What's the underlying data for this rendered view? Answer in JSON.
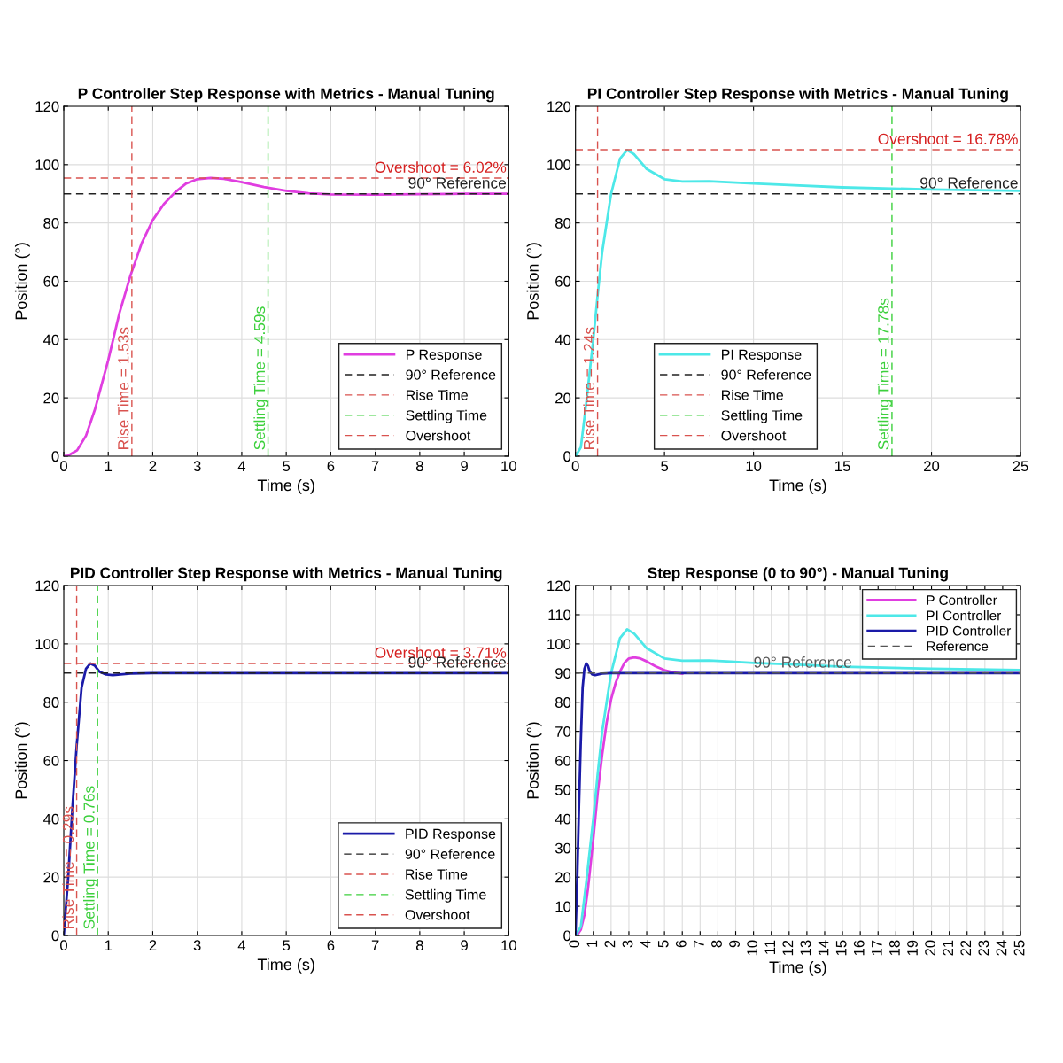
{
  "chart_data": [
    {
      "type": "line",
      "title": "P Controller Step Response with Metrics - Manual Tuning",
      "xlabel": "Time (s)",
      "ylabel": "Position (°)",
      "xlim": [
        0,
        10
      ],
      "ylim": [
        0,
        120
      ],
      "xticks": [
        0,
        1,
        2,
        3,
        4,
        5,
        6,
        7,
        8,
        9,
        10
      ],
      "yticks": [
        0,
        20,
        40,
        60,
        80,
        100,
        120
      ],
      "grid": true,
      "legend": "bottom right",
      "series": [
        {
          "name": "P Response",
          "color": "#e03ee0",
          "line_style": "solid",
          "x": [
            0,
            0.1,
            0.3,
            0.5,
            0.7,
            1,
            1.25,
            1.5,
            1.75,
            2,
            2.25,
            2.5,
            2.75,
            3,
            3.3,
            3.6,
            4,
            4.5,
            5,
            5.5,
            6,
            7,
            8,
            9,
            10
          ],
          "values": [
            0,
            0.2,
            2,
            7,
            16,
            33,
            49,
            62,
            73,
            81,
            86.5,
            90.5,
            93.5,
            95,
            95.4,
            95.1,
            94,
            92.3,
            91,
            90.2,
            89.8,
            89.7,
            89.9,
            90,
            90
          ]
        },
        {
          "name": "90° Reference",
          "color": "#222222",
          "line_style": "dashed",
          "x": [
            0,
            10
          ],
          "values": [
            90,
            90
          ]
        },
        {
          "name": "Rise Time",
          "color": "#d9534f",
          "line_style": "dashed",
          "x": [
            1.53,
            1.53
          ],
          "values": [
            0,
            120
          ]
        },
        {
          "name": "Settling Time",
          "color": "#3cd03c",
          "line_style": "dashed",
          "x": [
            4.59,
            4.59
          ],
          "values": [
            0,
            120
          ]
        },
        {
          "name": "Overshoot",
          "color": "#d9534f",
          "line_style": "dashed",
          "x": [
            0,
            10
          ],
          "values": [
            95.4,
            95.4
          ]
        }
      ],
      "annotations": [
        {
          "text": "Rise Time = 1.53s",
          "x": 1.53,
          "y": 2
        },
        {
          "text": "Settling Time = 4.59s",
          "x": 4.59,
          "y": 2
        },
        {
          "text": "Overshoot = 6.02%",
          "x": 10,
          "y": 95.4
        },
        {
          "text": "90° Reference",
          "x": 10,
          "y": 90
        }
      ]
    },
    {
      "type": "line",
      "title": "PI Controller Step Response with Metrics - Manual Tuning",
      "xlabel": "Time (s)",
      "ylabel": "Position (°)",
      "xlim": [
        0,
        25
      ],
      "ylim": [
        0,
        120
      ],
      "xticks": [
        0,
        5,
        10,
        15,
        20,
        25
      ],
      "yticks": [
        0,
        20,
        40,
        60,
        80,
        100,
        120
      ],
      "grid": true,
      "legend": "bottom",
      "series": [
        {
          "name": "PI Response",
          "color": "#4de8e8",
          "line_style": "solid",
          "x": [
            0,
            0.3,
            0.6,
            1,
            1.24,
            1.5,
            2,
            2.5,
            2.9,
            3.3,
            4,
            5,
            6,
            7.5,
            8.5,
            10,
            12,
            15,
            17.78,
            20,
            25
          ],
          "values": [
            0,
            3,
            18,
            40,
            55,
            70,
            90,
            102,
            105,
            103.5,
            98.5,
            95,
            94.2,
            94.3,
            94,
            93.5,
            93,
            92.2,
            91.8,
            91.5,
            91
          ]
        },
        {
          "name": "90° Reference",
          "color": "#222222",
          "line_style": "dashed",
          "x": [
            0,
            25
          ],
          "values": [
            90,
            90
          ]
        },
        {
          "name": "Rise Time",
          "color": "#d9534f",
          "line_style": "dashed",
          "x": [
            1.24,
            1.24
          ],
          "values": [
            0,
            120
          ]
        },
        {
          "name": "Settling Time",
          "color": "#3cd03c",
          "line_style": "dashed",
          "x": [
            17.78,
            17.78
          ],
          "values": [
            0,
            120
          ]
        },
        {
          "name": "Overshoot",
          "color": "#d9534f",
          "line_style": "dashed",
          "x": [
            0,
            25
          ],
          "values": [
            105.1,
            105.1
          ]
        }
      ],
      "annotations": [
        {
          "text": "Rise Time = 1.24s",
          "x": 1.24,
          "y": 2
        },
        {
          "text": "Settling Time = 17.78s",
          "x": 17.78,
          "y": 2
        },
        {
          "text": "Overshoot = 16.78%",
          "x": 25,
          "y": 105.1
        },
        {
          "text": "90° Reference",
          "x": 25,
          "y": 90
        }
      ]
    },
    {
      "type": "line",
      "title": "PID Controller Step Response with Metrics - Manual Tuning",
      "xlabel": "Time (s)",
      "ylabel": "Position (°)",
      "xlim": [
        0,
        10
      ],
      "ylim": [
        0,
        120
      ],
      "xticks": [
        0,
        1,
        2,
        3,
        4,
        5,
        6,
        7,
        8,
        9,
        10
      ],
      "yticks": [
        0,
        20,
        40,
        60,
        80,
        100,
        120
      ],
      "grid": true,
      "legend": "bottom right",
      "series": [
        {
          "name": "PID Response",
          "color": "#1a1aa8",
          "line_style": "solid",
          "x": [
            0,
            0.1,
            0.2,
            0.29,
            0.4,
            0.5,
            0.6,
            0.7,
            0.8,
            0.95,
            1.1,
            1.5,
            2,
            10
          ],
          "values": [
            0,
            20,
            45,
            65,
            85,
            91.5,
            93.3,
            92.5,
            90.5,
            89.5,
            89.3,
            89.8,
            90,
            90
          ]
        },
        {
          "name": "90° Reference",
          "color": "#222222",
          "line_style": "dashed",
          "x": [
            0,
            10
          ],
          "values": [
            90,
            90
          ]
        },
        {
          "name": "Rise Time",
          "color": "#d9534f",
          "line_style": "dashed",
          "x": [
            0.29,
            0.29
          ],
          "values": [
            0,
            120
          ]
        },
        {
          "name": "Settling Time",
          "color": "#3cd03c",
          "line_style": "dashed",
          "x": [
            0.76,
            0.76
          ],
          "values": [
            0,
            120
          ]
        },
        {
          "name": "Overshoot",
          "color": "#d9534f",
          "line_style": "dashed",
          "x": [
            0,
            10
          ],
          "values": [
            93.3,
            93.3
          ]
        }
      ],
      "annotations": [
        {
          "text": "Rise Time = 0.29s",
          "x": 0.29,
          "y": 2
        },
        {
          "text": "Settling Time = 0.76s",
          "x": 0.76,
          "y": 2
        },
        {
          "text": "Overshoot = 3.71%",
          "x": 10,
          "y": 93.3
        },
        {
          "text": "90° Reference",
          "x": 10,
          "y": 90
        }
      ]
    },
    {
      "type": "line",
      "title": "Step Response (0 to 90°) - Manual Tuning",
      "xlabel": "Time (s)",
      "ylabel": "Position (°)",
      "xlim": [
        0,
        25
      ],
      "ylim": [
        0,
        120
      ],
      "xticks": [
        0,
        1,
        2,
        3,
        4,
        5,
        6,
        7,
        8,
        9,
        10,
        11,
        12,
        13,
        14,
        15,
        16,
        17,
        18,
        19,
        20,
        21,
        22,
        23,
        24,
        25
      ],
      "yticks": [
        0,
        10,
        20,
        30,
        40,
        50,
        60,
        70,
        80,
        90,
        100,
        110,
        120
      ],
      "grid": true,
      "legend": "top right",
      "series": [
        {
          "name": "P Controller",
          "color": "#e03ee0",
          "line_style": "solid",
          "x": [
            0,
            0.1,
            0.3,
            0.5,
            0.7,
            1,
            1.25,
            1.5,
            1.75,
            2,
            2.25,
            2.5,
            2.75,
            3,
            3.3,
            3.6,
            4,
            4.5,
            5,
            5.5,
            6
          ],
          "values": [
            0,
            0.2,
            2,
            7,
            16,
            33,
            49,
            62,
            73,
            81,
            86.5,
            90.5,
            93.5,
            95,
            95.4,
            95.1,
            94,
            92.3,
            91,
            90.2,
            89.8
          ]
        },
        {
          "name": "PI Controller",
          "color": "#4de8e8",
          "line_style": "solid",
          "x": [
            0,
            0.3,
            0.6,
            1,
            1.24,
            1.5,
            2,
            2.5,
            2.9,
            3.3,
            4,
            5,
            6,
            7.5,
            8.5,
            10,
            12,
            15,
            17.78,
            20,
            25
          ],
          "values": [
            0,
            3,
            18,
            40,
            55,
            70,
            90,
            102,
            105,
            103.5,
            98.5,
            95,
            94.2,
            94.3,
            94,
            93.5,
            93,
            92.2,
            91.8,
            91.5,
            91
          ]
        },
        {
          "name": "PID Controller",
          "color": "#1a1aa8",
          "line_style": "solid",
          "x": [
            0,
            0.1,
            0.2,
            0.29,
            0.4,
            0.5,
            0.6,
            0.7,
            0.8,
            0.95,
            1.1,
            1.5,
            2,
            25
          ],
          "values": [
            0,
            20,
            45,
            65,
            85,
            91.5,
            93.3,
            92.5,
            90.5,
            89.5,
            89.3,
            89.8,
            90,
            90
          ]
        },
        {
          "name": "Reference",
          "color": "#555555",
          "line_style": "dashed",
          "x": [
            0,
            25
          ],
          "values": [
            90,
            90
          ]
        }
      ],
      "annotations": [
        {
          "text": "90° Reference",
          "x": 10,
          "y": 90
        }
      ]
    }
  ]
}
